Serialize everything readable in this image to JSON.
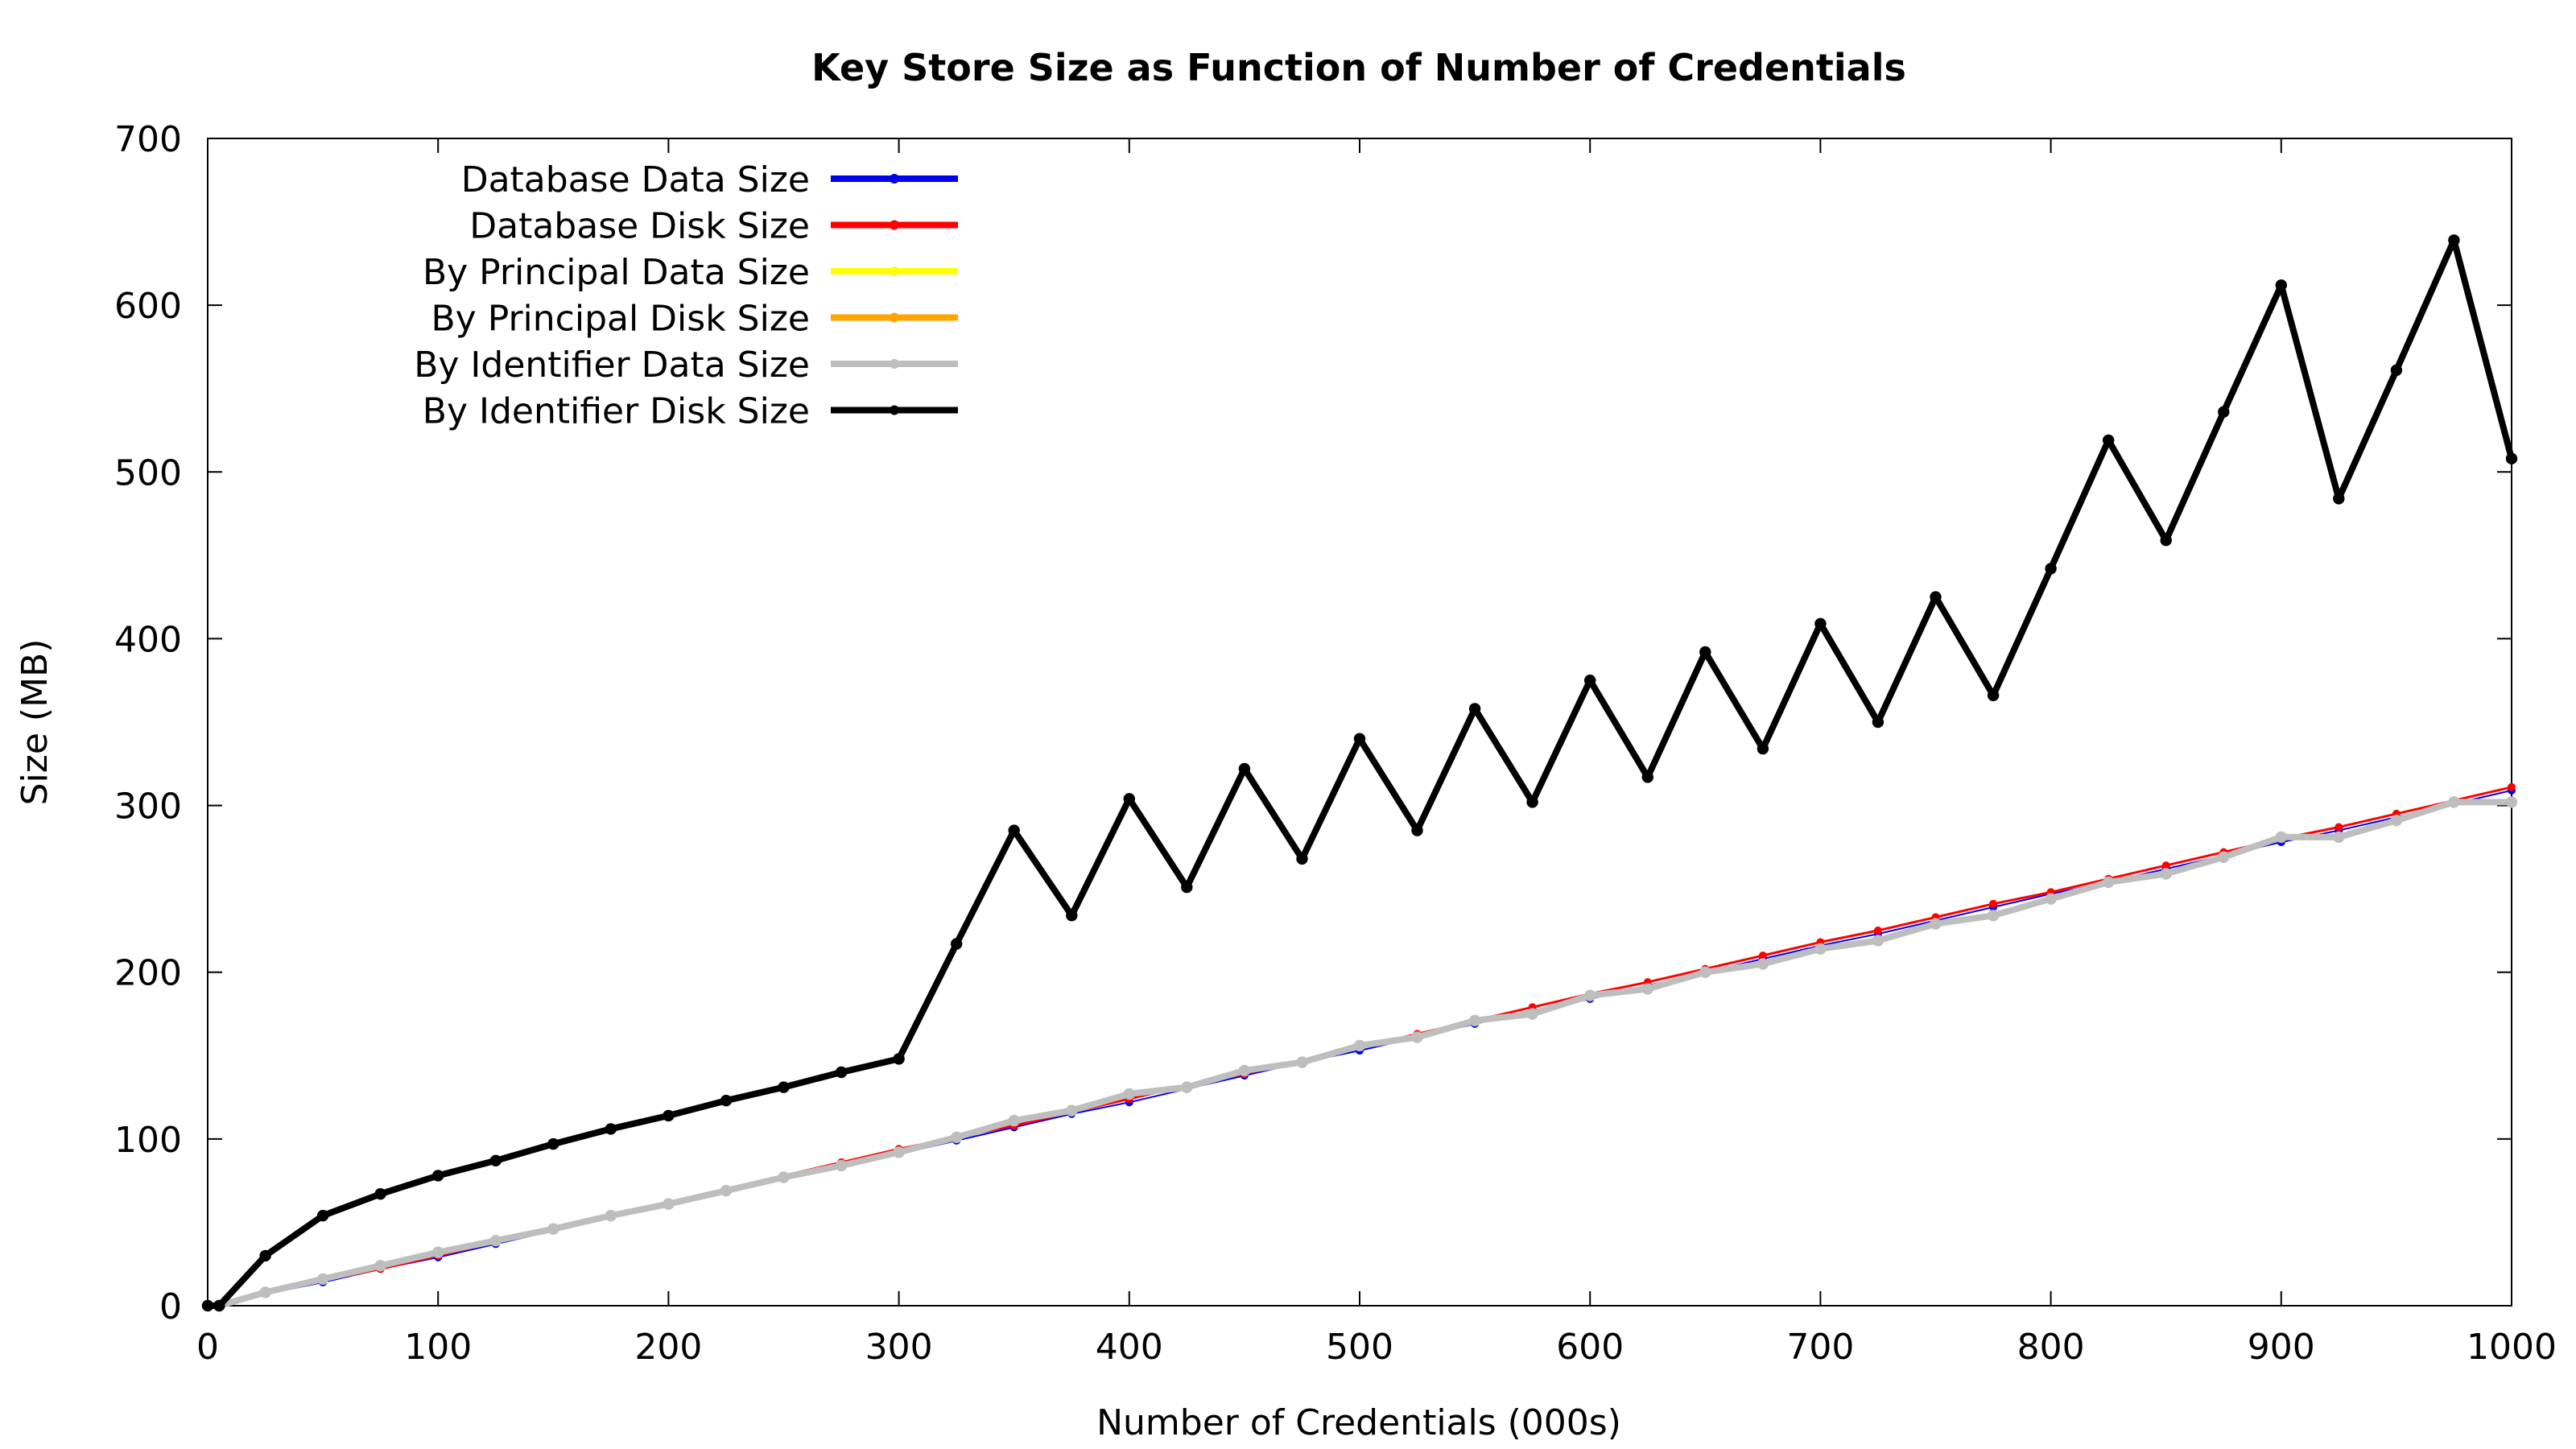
{
  "chart_data": {
    "type": "line",
    "title": "Key Store Size as Function of Number of Credentials",
    "xlabel": "Number of Credentials (000s)",
    "ylabel": "Size (MB)",
    "xlim": [
      0,
      1000
    ],
    "ylim": [
      0,
      700
    ],
    "xticks": [
      0,
      100,
      200,
      300,
      400,
      500,
      600,
      700,
      800,
      900,
      1000
    ],
    "yticks": [
      0,
      100,
      200,
      300,
      400,
      500,
      600,
      700
    ],
    "grid": false,
    "legend_position": "top-left",
    "x": [
      0,
      5,
      25,
      50,
      75,
      100,
      125,
      150,
      175,
      200,
      225,
      250,
      275,
      300,
      325,
      350,
      375,
      400,
      425,
      450,
      475,
      500,
      525,
      550,
      575,
      600,
      625,
      650,
      675,
      700,
      725,
      750,
      775,
      800,
      825,
      850,
      875,
      900,
      925,
      950,
      975,
      1000
    ],
    "series": [
      {
        "name": "Database Data Size",
        "color": "#0000ee",
        "width": 2,
        "values": [
          0,
          0,
          7,
          14,
          22,
          29,
          37,
          45,
          53,
          61,
          68,
          76,
          84,
          91,
          99,
          107,
          115,
          122,
          130,
          138,
          146,
          153,
          161,
          169,
          177,
          184,
          192,
          200,
          208,
          216,
          223,
          231,
          239,
          247,
          254,
          262,
          270,
          278,
          285,
          293,
          301,
          309
        ]
      },
      {
        "name": "Database Disk Size",
        "color": "#ff0000",
        "width": 3,
        "values": [
          0,
          0,
          7,
          15,
          22,
          30,
          38,
          46,
          54,
          62,
          70,
          78,
          86,
          94,
          101,
          108,
          116,
          124,
          132,
          139,
          147,
          155,
          163,
          171,
          179,
          187,
          194,
          202,
          210,
          218,
          225,
          233,
          241,
          248,
          256,
          264,
          272,
          280,
          287,
          295,
          303,
          311
        ]
      },
      {
        "name": "By Principal Data Size",
        "color": "#ffff00",
        "width": 6,
        "values": [
          0,
          0,
          8,
          16,
          24,
          32,
          39,
          46,
          54,
          61,
          69,
          77,
          84,
          92,
          101,
          111,
          117,
          127,
          131,
          141,
          146,
          156,
          161,
          171,
          175,
          186,
          190,
          200,
          205,
          214,
          219,
          229,
          234,
          244,
          254,
          259,
          269,
          281,
          281,
          291,
          302,
          302
        ]
      },
      {
        "name": "By Principal Disk Size",
        "color": "#ffa500",
        "width": 6,
        "values": [
          0,
          0,
          8,
          16,
          24,
          32,
          39,
          46,
          54,
          61,
          69,
          77,
          84,
          92,
          101,
          111,
          117,
          127,
          131,
          141,
          146,
          156,
          161,
          171,
          175,
          186,
          190,
          200,
          205,
          214,
          219,
          229,
          234,
          244,
          254,
          259,
          269,
          281,
          281,
          291,
          302,
          302
        ]
      },
      {
        "name": "By Identifier Data Size",
        "color": "#bebebe",
        "width": 8,
        "values": [
          0,
          0,
          8,
          16,
          24,
          32,
          39,
          46,
          54,
          61,
          69,
          77,
          84,
          92,
          101,
          111,
          117,
          127,
          131,
          141,
          146,
          156,
          161,
          171,
          175,
          186,
          190,
          200,
          205,
          214,
          219,
          229,
          234,
          244,
          254,
          259,
          269,
          281,
          281,
          291,
          302,
          302
        ]
      },
      {
        "name": "By Identifier Disk Size",
        "color": "#000000",
        "width": 8,
        "values": [
          0,
          0,
          30,
          54,
          67,
          78,
          87,
          97,
          106,
          114,
          123,
          131,
          140,
          148,
          217,
          285,
          234,
          304,
          251,
          322,
          268,
          340,
          285,
          358,
          302,
          375,
          317,
          392,
          334,
          409,
          350,
          425,
          366,
          442,
          519,
          459,
          536,
          612,
          484,
          561,
          639,
          508
        ]
      }
    ]
  }
}
